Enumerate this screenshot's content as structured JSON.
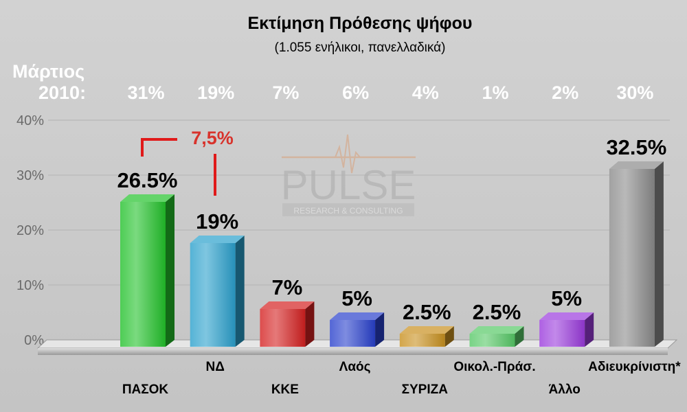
{
  "chart_data": {
    "type": "bar",
    "title": "Εκτίμηση Πρόθεσης ψήφου",
    "subtitle": "(1.055 ενήλικοι, πανελλαδικά)",
    "categories": [
      "ΠΑΣΟΚ",
      "ΝΔ",
      "ΚΚΕ",
      "Λαός",
      "ΣΥΡΙΖΑ",
      "Οικολ.-Πράσ.",
      "Άλλο",
      "Αδιευκρίνιστη*"
    ],
    "values": [
      26.5,
      19,
      7,
      5,
      2.5,
      2.5,
      5,
      32.5
    ],
    "value_labels": [
      "26.5%",
      "19%",
      "7%",
      "5%",
      "2.5%",
      "2.5%",
      "5%",
      "32.5%"
    ],
    "colors": [
      "#22c12a",
      "#2aa0cc",
      "#d42020",
      "#2840cc",
      "#c8901e",
      "#56c866",
      "#9a3adc",
      "#8a8a8a"
    ],
    "comparison_label_line1": "Μάρτιος",
    "comparison_label_line2": "2010:",
    "comparison_values": [
      "31%",
      "19%",
      "7%",
      "6%",
      "4%",
      "1%",
      "2%",
      "30%"
    ],
    "difference_annotation": "7,5%",
    "yticks": [
      "0%",
      "10%",
      "20%",
      "30%",
      "40%"
    ],
    "ylim": [
      0,
      40
    ],
    "grid": true,
    "watermark_line1": "PULSE",
    "watermark_line2": "RESEARCH & CONSULTING"
  }
}
